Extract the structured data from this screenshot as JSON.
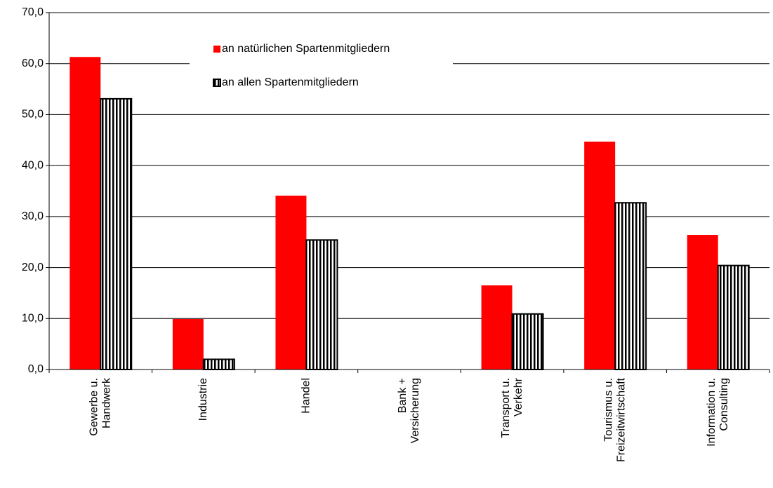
{
  "chart_data": {
    "type": "bar",
    "categories": [
      [
        "Gewerbe u.",
        "Handwerk"
      ],
      [
        "Industrie"
      ],
      [
        "Handel"
      ],
      [
        "Bank +",
        "Versicherung"
      ],
      [
        "Transport u.",
        "Verkehr"
      ],
      [
        "Tourismus u.",
        "Freizeitwirtschaft"
      ],
      [
        "Information u.",
        "Consulting"
      ]
    ],
    "series": [
      {
        "name": "an natürlichen Spartenmitgliedern",
        "color": "#ff0000",
        "values": [
          61.3,
          9.9,
          34.1,
          0,
          16.5,
          44.7,
          26.4
        ]
      },
      {
        "name": "an allen Spartenmitgliedern",
        "color": "#ffffff",
        "hatch": "vertical",
        "values": [
          53.1,
          2.0,
          25.4,
          0,
          10.9,
          32.7,
          20.4
        ]
      }
    ],
    "ylim": [
      0,
      70
    ],
    "yticks": [
      {
        "value": 0,
        "label": "0,0"
      },
      {
        "value": 10,
        "label": "10,0"
      },
      {
        "value": 20,
        "label": "20,0"
      },
      {
        "value": 30,
        "label": "30,0"
      },
      {
        "value": 40,
        "label": "40,0"
      },
      {
        "value": 50,
        "label": "50,0"
      },
      {
        "value": 60,
        "label": "60,0"
      },
      {
        "value": 70,
        "label": "70,0"
      }
    ],
    "grid": true
  }
}
